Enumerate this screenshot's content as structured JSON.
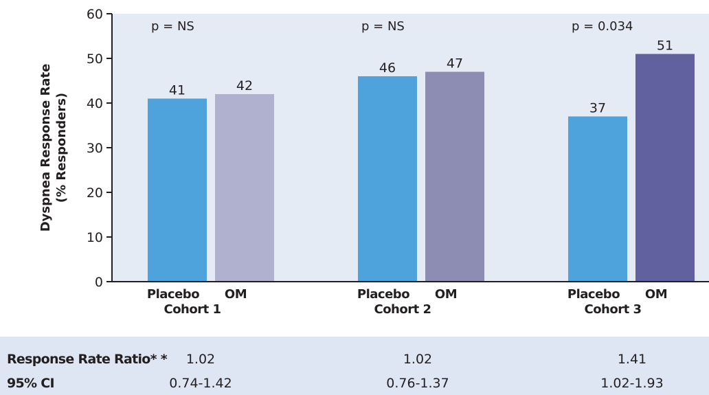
{
  "chart_data": {
    "type": "bar",
    "ylabel": [
      "Dyspnea Response Rate",
      "(% Responders)"
    ],
    "ylim": [
      0,
      60
    ],
    "yticks": [
      0,
      10,
      20,
      30,
      40,
      50,
      60
    ],
    "grid": false,
    "background": "#e4ebf5",
    "groups": [
      {
        "name": "Cohort 1",
        "pvalue": "p = NS",
        "bars": [
          {
            "category": "Placebo",
            "value": 41,
            "color": "#4ea3dc"
          },
          {
            "category": "OM",
            "value": 42,
            "color": "#b0b0cf"
          }
        ]
      },
      {
        "name": "Cohort 2",
        "pvalue": "p = NS",
        "bars": [
          {
            "category": "Placebo",
            "value": 46,
            "color": "#4ea3dc"
          },
          {
            "category": "OM",
            "value": 47,
            "color": "#8d8db4"
          }
        ]
      },
      {
        "name": "Cohort 3",
        "pvalue": "p = 0.034",
        "bars": [
          {
            "category": "Placebo",
            "value": 37,
            "color": "#4ea3dc"
          },
          {
            "category": "OM",
            "value": 51,
            "color": "#6161a0"
          }
        ]
      }
    ]
  },
  "stats": {
    "ratio_label": "Response Rate Ratio* *",
    "ci_label": "95% CI",
    "ratios": [
      "1.02",
      "1.02",
      "1.41"
    ],
    "cis": [
      "0.74-1.42",
      "0.76-1.37",
      "1.02-1.93"
    ]
  }
}
